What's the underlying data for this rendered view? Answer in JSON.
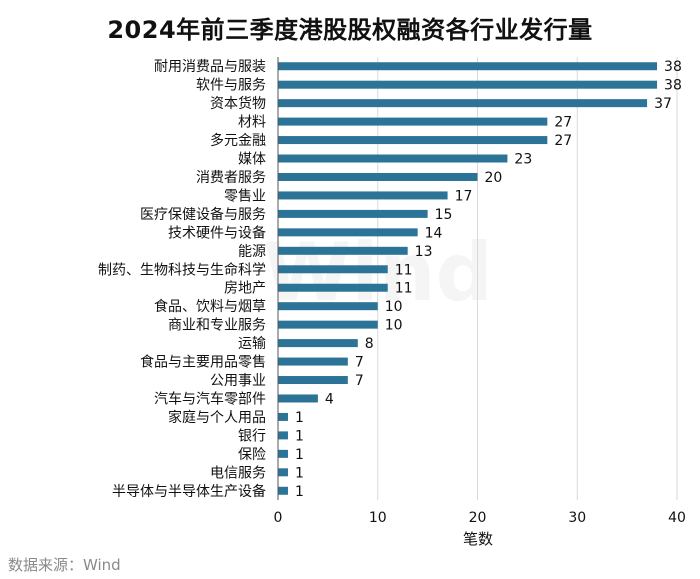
{
  "chart_data": {
    "type": "bar",
    "orientation": "horizontal",
    "title": "2024年前三季度港股股权融资各行业发行量",
    "xlabel": "笔数",
    "ylabel": "",
    "xlim": [
      0,
      40
    ],
    "xticks": [
      0,
      10,
      20,
      30,
      40
    ],
    "grid": true,
    "bar_color": "#2b7497",
    "categories": [
      "耐用消费品与服装",
      "软件与服务",
      "资本货物",
      "材料",
      "多元金融",
      "媒体",
      "消费者服务",
      "零售业",
      "医疗保健设备与服务",
      "技术硬件与设备",
      "能源",
      "制药、生物科技与生命科学",
      "房地产",
      "食品、饮料与烟草",
      "商业和专业服务",
      "运输",
      "食品与主要用品零售",
      "公用事业",
      "汽车与汽车零部件",
      "家庭与个人用品",
      "银行",
      "保险",
      "电信服务",
      "半导体与半导体生产设备"
    ],
    "values": [
      38,
      38,
      37,
      27,
      27,
      23,
      20,
      17,
      15,
      14,
      13,
      11,
      11,
      10,
      10,
      8,
      7,
      7,
      4,
      1,
      1,
      1,
      1,
      1
    ]
  },
  "source": "数据来源：Wind",
  "watermark": "Wind"
}
